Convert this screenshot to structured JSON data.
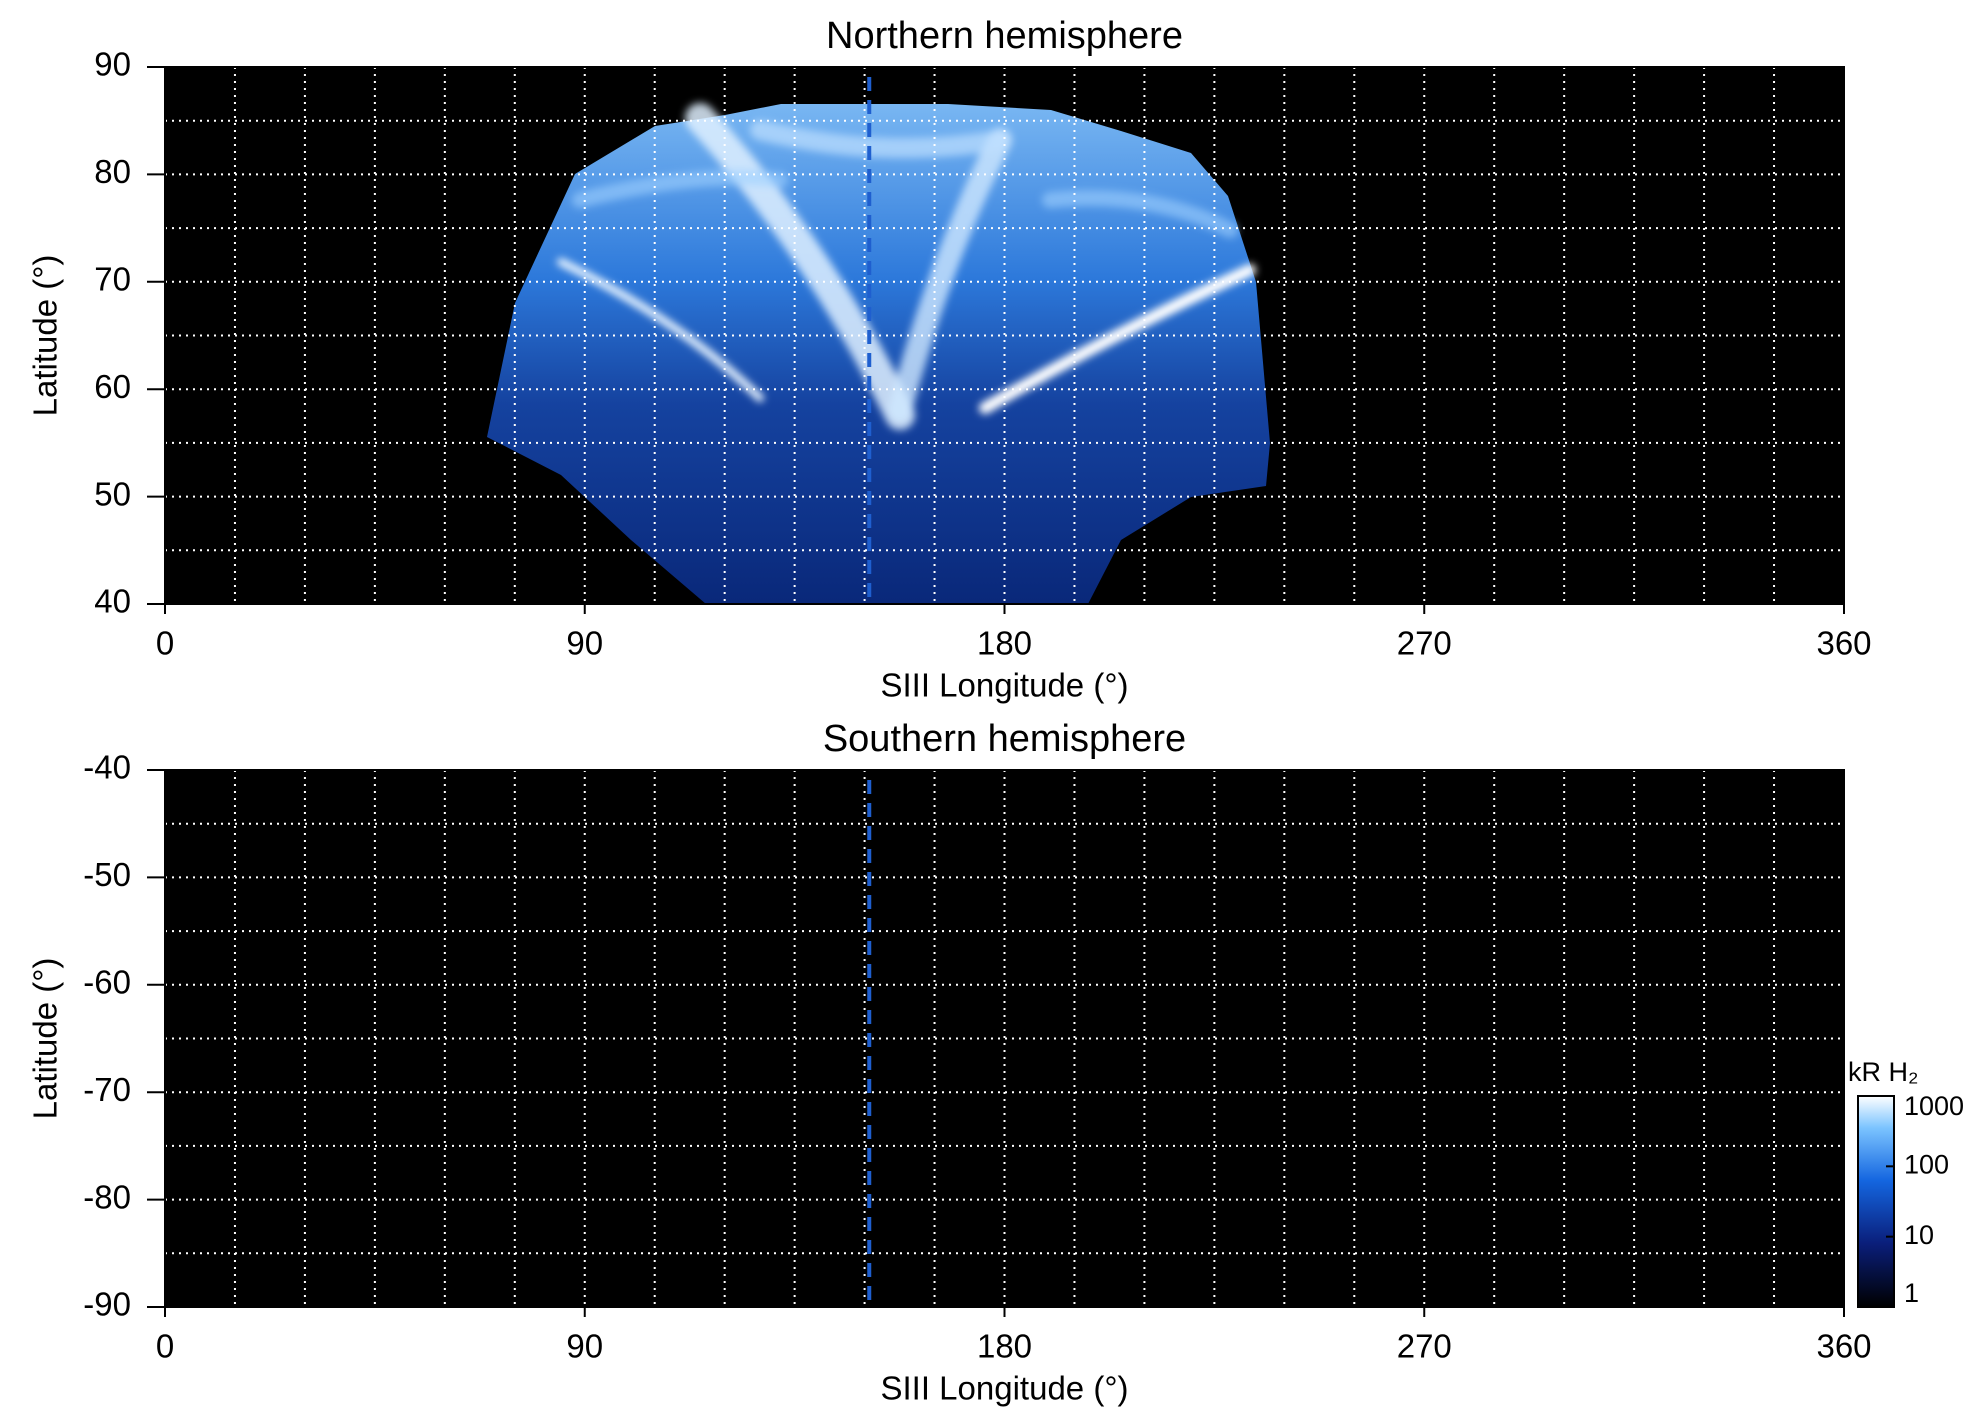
{
  "chart_data": [
    {
      "type": "map",
      "title": "Northern hemisphere",
      "xlabel": "SIII Longitude (°)",
      "ylabel": "Latitude (°)",
      "xlim": [
        0,
        360
      ],
      "ylim": [
        40,
        90
      ],
      "xticks": [
        0,
        90,
        180,
        270,
        360
      ],
      "yticks": [
        40,
        50,
        60,
        70,
        80,
        90
      ],
      "xgrid": [
        15,
        30,
        45,
        60,
        75,
        90,
        105,
        120,
        135,
        150,
        165,
        180,
        195,
        210,
        225,
        240,
        255,
        270,
        285,
        300,
        315,
        330,
        345
      ],
      "ygrid": [
        45,
        50,
        55,
        60,
        65,
        70,
        75,
        80,
        85
      ],
      "marker_longitude": 151
    },
    {
      "type": "map",
      "title": "Southern hemisphere",
      "xlabel": "SIII Longitude (°)",
      "ylabel": "Latitude (°)",
      "xlim": [
        0,
        360
      ],
      "ylim": [
        -90,
        -40
      ],
      "xticks": [
        0,
        90,
        180,
        270,
        360
      ],
      "yticks": [
        -90,
        -80,
        -70,
        -60,
        -50,
        -40
      ],
      "xgrid": [
        15,
        30,
        45,
        60,
        75,
        90,
        105,
        120,
        135,
        150,
        165,
        180,
        195,
        210,
        225,
        240,
        255,
        270,
        285,
        300,
        315,
        330,
        345
      ],
      "ygrid": [
        -85,
        -80,
        -75,
        -70,
        -65,
        -60,
        -55,
        -50,
        -45
      ],
      "marker_longitude": 151,
      "colorbar": {
        "label": "kR H₂",
        "lim": [
          1,
          1000
        ],
        "ticks": [
          1,
          10,
          100,
          1000
        ],
        "scale": "log"
      }
    }
  ]
}
